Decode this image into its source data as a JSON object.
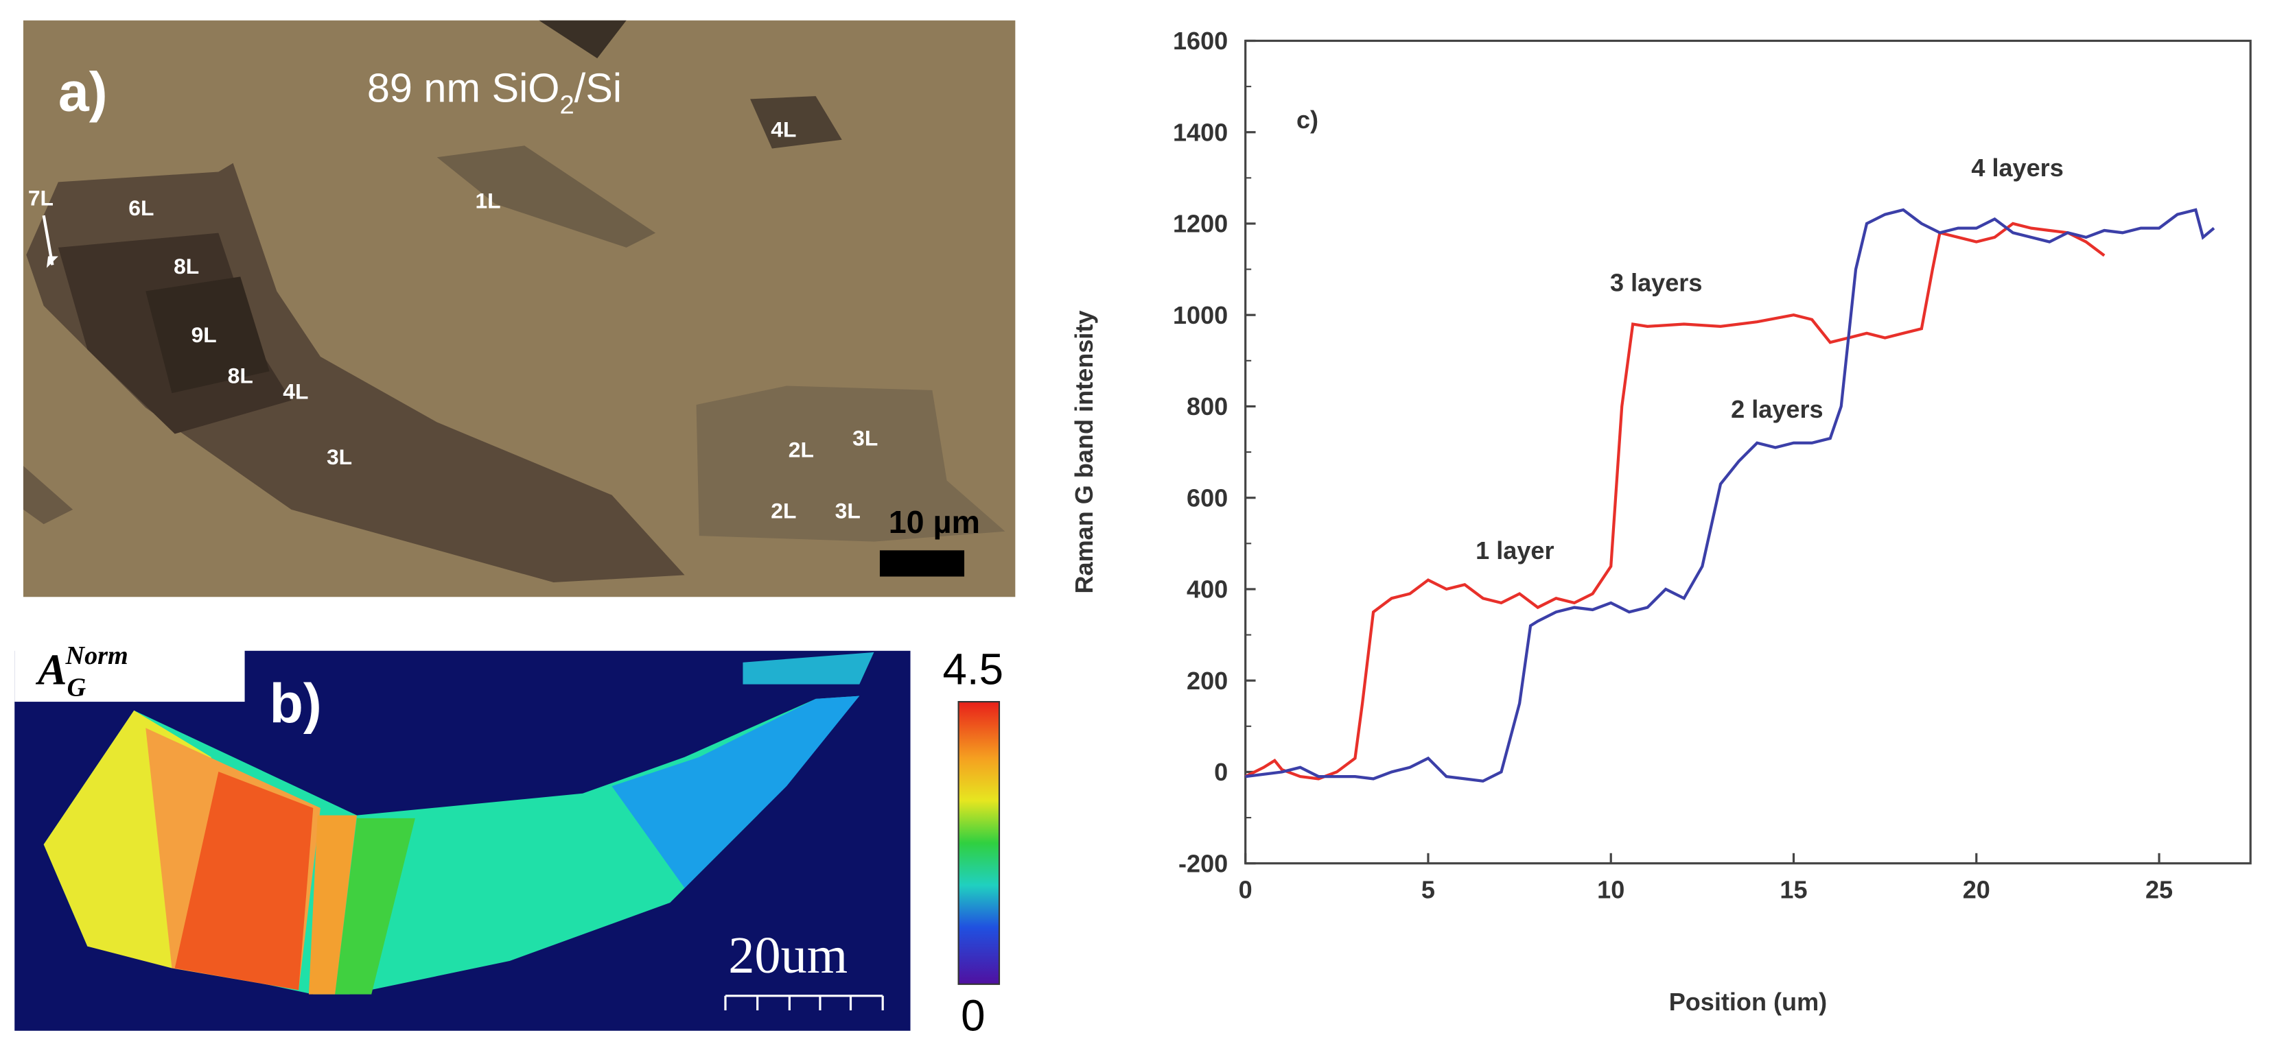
{
  "panel_a": {
    "label": "a)",
    "substrate": "89 nm SiO",
    "substrate_sub": "2",
    "substrate_tail": "/Si",
    "layers": [
      "4L",
      "7L",
      "6L",
      "1L",
      "8L",
      "9L",
      "8L",
      "4L",
      "3L",
      "2L",
      "3L",
      "2L",
      "3L"
    ],
    "scale_bar": "10 µm"
  },
  "panel_b": {
    "label": "b)",
    "quantity": "A",
    "quantity_sub": "G",
    "quantity_sup": "Norm",
    "colorbar_max": "4.5",
    "colorbar_min": "0",
    "scale_bar": "20um"
  },
  "chart_data": {
    "type": "line",
    "panel_label": "c)",
    "x_label": "Position (um)",
    "y_label": "Raman G band intensity",
    "xlim": [
      0,
      27.5
    ],
    "ylim": [
      -200,
      1600
    ],
    "xticks": [
      0,
      5,
      10,
      15,
      20,
      25
    ],
    "yticks": [
      -200,
      0,
      200,
      400,
      600,
      800,
      1000,
      1200,
      1400,
      1600
    ],
    "annotations": [
      "1 layer",
      "3 layers",
      "2 layers",
      "4 layers"
    ],
    "series": [
      {
        "color": "#e8302a",
        "x": [
          0,
          0.5,
          0.8,
          1,
          1.5,
          2,
          2.5,
          3,
          3.2,
          3.5,
          4,
          4.5,
          5,
          5.5,
          6,
          6.5,
          7,
          7.5,
          8,
          8.5,
          9,
          9.5,
          10,
          10.3,
          10.6,
          11,
          12,
          13,
          14,
          15,
          15.5,
          16,
          16.5,
          17,
          17.5,
          18,
          18.5,
          18.8,
          19,
          19.5,
          20,
          20.5,
          21,
          21.5,
          22,
          22.5,
          23,
          23.5
        ],
        "values": [
          -10,
          10,
          25,
          5,
          -10,
          -15,
          0,
          30,
          150,
          350,
          380,
          390,
          420,
          400,
          410,
          380,
          370,
          390,
          360,
          380,
          370,
          390,
          450,
          800,
          980,
          975,
          980,
          975,
          985,
          1000,
          990,
          940,
          950,
          960,
          950,
          960,
          970,
          1100,
          1180,
          1170,
          1160,
          1170,
          1200,
          1190,
          1185,
          1180,
          1160,
          1130
        ]
      },
      {
        "color": "#3b3fa8",
        "x": [
          0,
          1,
          1.5,
          2,
          3,
          3.5,
          4,
          4.5,
          5,
          5.5,
          6,
          6.5,
          7,
          7.5,
          7.8,
          8,
          8.5,
          9,
          9.5,
          10,
          10.5,
          11,
          11.5,
          12,
          12.5,
          13,
          13.5,
          14,
          14.5,
          15,
          15.5,
          16,
          16.3,
          16.7,
          17,
          17.5,
          18,
          18.5,
          19,
          19.5,
          20,
          20.5,
          21,
          21.5,
          22,
          22.5,
          23,
          23.5,
          24,
          24.5,
          25,
          25.5,
          26,
          26.2,
          26.5
        ],
        "values": [
          -10,
          0,
          10,
          -10,
          -10,
          -15,
          0,
          10,
          30,
          -10,
          -15,
          -20,
          0,
          150,
          320,
          330,
          350,
          360,
          355,
          370,
          350,
          360,
          400,
          380,
          450,
          630,
          680,
          720,
          710,
          720,
          720,
          730,
          800,
          1100,
          1200,
          1220,
          1230,
          1200,
          1180,
          1190,
          1190,
          1210,
          1180,
          1170,
          1160,
          1180,
          1170,
          1185,
          1180,
          1190,
          1190,
          1220,
          1230,
          1170,
          1190
        ]
      }
    ]
  }
}
